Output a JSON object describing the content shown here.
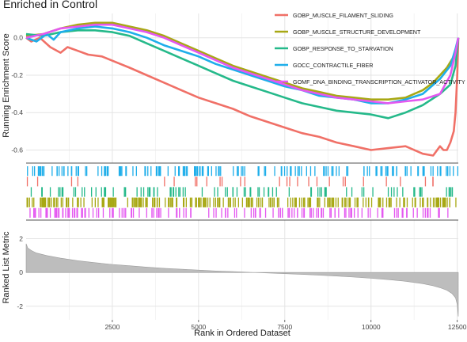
{
  "chart_data": {
    "type": "line",
    "title": "Enriched in Control",
    "xlabel": "Rank in Ordered Dataset",
    "top_panel": {
      "ylabel": "Running Enrichment Score",
      "ylim": [
        -0.67,
        0.13
      ],
      "yticks": [
        "-0.6",
        "-0.4",
        "-0.2",
        "0.0"
      ],
      "ytick_values": [
        -0.6,
        -0.4,
        -0.2,
        0.0
      ],
      "grid": true,
      "legend_position": "top-right",
      "series": [
        {
          "name": "GOBP_MUSCLE_FILAMENT_SLIDING",
          "color": "#f07067",
          "x": [
            1,
            150,
            400,
            700,
            1000,
            1200,
            1500,
            1800,
            2200,
            2600,
            3000,
            3500,
            4000,
            4500,
            5000,
            5500,
            6000,
            6500,
            7000,
            7500,
            8000,
            8500,
            9000,
            9500,
            10000,
            10500,
            11000,
            11500,
            11800,
            12000,
            12100,
            12200,
            12300,
            12400,
            12450,
            12500,
            12530
          ],
          "values": [
            0.0,
            -0.02,
            0.0,
            -0.05,
            -0.08,
            -0.05,
            -0.07,
            -0.09,
            -0.1,
            -0.13,
            -0.16,
            -0.2,
            -0.24,
            -0.28,
            -0.32,
            -0.35,
            -0.38,
            -0.42,
            -0.45,
            -0.48,
            -0.51,
            -0.53,
            -0.56,
            -0.58,
            -0.6,
            -0.59,
            -0.58,
            -0.62,
            -0.63,
            -0.58,
            -0.6,
            -0.6,
            -0.56,
            -0.5,
            -0.4,
            -0.2,
            0.0
          ]
        },
        {
          "name": "GOBP_MUSCLE_STRUCTURE_DEVELOPMENT",
          "color": "#a8a814",
          "x": [
            1,
            500,
            1000,
            1500,
            2000,
            2500,
            3000,
            3500,
            4000,
            4500,
            5000,
            5500,
            6000,
            6500,
            7000,
            7500,
            8000,
            8500,
            9000,
            9500,
            10000,
            10500,
            11000,
            11500,
            11800,
            12000,
            12200,
            12400,
            12500,
            12530
          ],
          "values": [
            0.01,
            0.02,
            0.05,
            0.07,
            0.08,
            0.08,
            0.06,
            0.04,
            0.01,
            -0.03,
            -0.07,
            -0.11,
            -0.15,
            -0.18,
            -0.21,
            -0.24,
            -0.27,
            -0.29,
            -0.31,
            -0.32,
            -0.33,
            -0.33,
            -0.32,
            -0.28,
            -0.24,
            -0.2,
            -0.16,
            -0.1,
            -0.03,
            0.0
          ]
        },
        {
          "name": "GOBP_RESPONSE_TO_STARVATION",
          "color": "#25b98a",
          "x": [
            1,
            500,
            1000,
            1500,
            2000,
            2500,
            3000,
            3500,
            4000,
            4500,
            5000,
            5500,
            6000,
            6500,
            7000,
            7500,
            8000,
            8500,
            9000,
            9500,
            10000,
            10500,
            11000,
            11500,
            12000,
            12300,
            12450,
            12530
          ],
          "values": [
            0.02,
            0.01,
            0.03,
            0.04,
            0.04,
            0.03,
            0.01,
            -0.03,
            -0.07,
            -0.11,
            -0.15,
            -0.19,
            -0.23,
            -0.26,
            -0.29,
            -0.32,
            -0.35,
            -0.37,
            -0.39,
            -0.4,
            -0.41,
            -0.43,
            -0.4,
            -0.36,
            -0.3,
            -0.25,
            -0.15,
            0.0
          ]
        },
        {
          "name": "GOCC_CONTRACTILE_FIBER",
          "color": "#1eaeea",
          "x": [
            1,
            300,
            600,
            800,
            1000,
            1500,
            2000,
            2500,
            3000,
            3500,
            4000,
            4500,
            5000,
            5500,
            6000,
            6500,
            7000,
            7500,
            8000,
            8500,
            9000,
            9500,
            10000,
            10500,
            11000,
            11500,
            12000,
            12300,
            12450,
            12530
          ],
          "values": [
            0.0,
            -0.02,
            0.02,
            -0.01,
            0.03,
            0.05,
            0.06,
            0.05,
            0.03,
            0.0,
            -0.04,
            -0.07,
            -0.1,
            -0.14,
            -0.17,
            -0.2,
            -0.23,
            -0.26,
            -0.28,
            -0.31,
            -0.32,
            -0.33,
            -0.35,
            -0.35,
            -0.33,
            -0.3,
            -0.22,
            -0.15,
            -0.06,
            0.0
          ]
        },
        {
          "name": "GOMF_DNA_BINDING_TRANSCRIPTION_ACTIVATOR_ACTIVITY",
          "color": "#e458f0",
          "x": [
            1,
            500,
            1000,
            1500,
            2000,
            2500,
            3000,
            3500,
            4000,
            4500,
            5000,
            5500,
            6000,
            6500,
            7000,
            7500,
            8000,
            8500,
            9000,
            9500,
            10000,
            10500,
            11000,
            11500,
            12000,
            12300,
            12450,
            12530
          ],
          "values": [
            0.0,
            0.02,
            0.05,
            0.06,
            0.07,
            0.07,
            0.05,
            0.03,
            0.0,
            -0.04,
            -0.08,
            -0.12,
            -0.16,
            -0.19,
            -0.22,
            -0.25,
            -0.28,
            -0.3,
            -0.32,
            -0.33,
            -0.34,
            -0.35,
            -0.34,
            -0.33,
            -0.3,
            -0.2,
            -0.08,
            0.0
          ]
        }
      ]
    },
    "hit_panel": {
      "rows": [
        {
          "name": "GOCC_CONTRACTILE_FIBER",
          "color": "#1eaeea",
          "density": "dense"
        },
        {
          "name": "GOBP_MUSCLE_FILAMENT_SLIDING",
          "color": "#f07067",
          "density": "sparse"
        },
        {
          "name": "GOBP_RESPONSE_TO_STARVATION",
          "color": "#25b98a",
          "density": "medium"
        },
        {
          "name": "GOBP_MUSCLE_STRUCTURE_DEVELOPMENT",
          "color": "#a8a814",
          "density": "very-dense"
        },
        {
          "name": "GOMF_DNA_BINDING_TRANSCRIPTION_ACTIVATOR_ACTIVITY",
          "color": "#e458f0",
          "density": "dense"
        }
      ]
    },
    "bottom_panel": {
      "ylabel": "Ranked List Metric",
      "ylim": [
        -2.8,
        3.1
      ],
      "yticks": [
        "2",
        "0",
        "-2"
      ],
      "ytick_values": [
        2,
        0,
        -2
      ],
      "fill_color": "#bdbdbd",
      "x": [
        1,
        50,
        150,
        300,
        600,
        1000,
        1500,
        2000,
        2500,
        3000,
        3500,
        4000,
        4500,
        5000,
        5500,
        6000,
        6500,
        7000,
        7500,
        8000,
        8500,
        9000,
        9500,
        10000,
        10500,
        11000,
        11500,
        11800,
        12000,
        12200,
        12350,
        12450,
        12500,
        12530
      ],
      "values": [
        1.7,
        1.45,
        1.3,
        1.15,
        1.0,
        0.85,
        0.7,
        0.58,
        0.48,
        0.4,
        0.32,
        0.25,
        0.19,
        0.14,
        0.09,
        0.05,
        0.01,
        -0.03,
        -0.07,
        -0.11,
        -0.16,
        -0.21,
        -0.27,
        -0.34,
        -0.42,
        -0.52,
        -0.66,
        -0.78,
        -0.9,
        -1.05,
        -1.25,
        -1.5,
        -1.9,
        -2.6
      ]
    },
    "xlim": [
      1,
      12530
    ],
    "xticks": [
      "2500",
      "5000",
      "7500",
      "10000",
      "12500"
    ],
    "xtick_values": [
      2500,
      5000,
      7500,
      10000,
      12500
    ]
  }
}
